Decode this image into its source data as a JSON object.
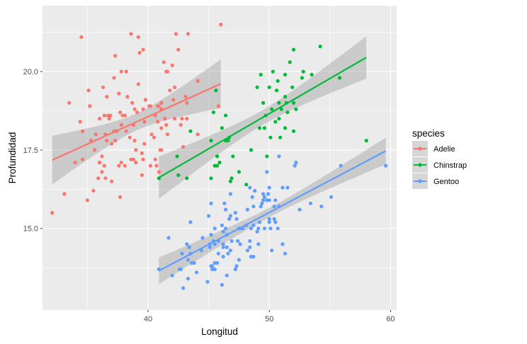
{
  "chart_data": {
    "type": "scatter",
    "xlabel": "Longitud",
    "ylabel": "Profundidad",
    "xlim": [
      31.3,
      60.5
    ],
    "ylim": [
      12.4,
      22.1
    ],
    "x_ticks": [
      40,
      50,
      60
    ],
    "y_ticks": [
      15.0,
      17.5,
      20.0
    ],
    "x_tick_labels": [
      "40",
      "50",
      "60"
    ],
    "y_tick_labels": [
      "15.0",
      "17.5",
      "20.0"
    ],
    "grid": true,
    "background": "#ebebeb",
    "legend": {
      "title": "species",
      "placement": "right"
    },
    "series": [
      {
        "name": "Adelie",
        "color": "#f8766d",
        "fit": {
          "x": [
            32.1,
            46.0
          ],
          "y": [
            17.18,
            19.61
          ],
          "ci_low": [
            16.3,
            19.0
          ],
          "ci_high": [
            18.1,
            20.3
          ]
        },
        "points": [
          [
            32.1,
            15.5
          ],
          [
            33.1,
            16.1
          ],
          [
            33.5,
            19.0
          ],
          [
            34.0,
            17.1
          ],
          [
            34.4,
            18.4
          ],
          [
            34.5,
            21.1
          ],
          [
            34.6,
            17.2
          ],
          [
            34.6,
            18.1
          ],
          [
            35.0,
            15.9
          ],
          [
            35.1,
            19.4
          ],
          [
            35.2,
            18.9
          ],
          [
            35.3,
            17.8
          ],
          [
            35.5,
            16.2
          ],
          [
            35.6,
            17.5
          ],
          [
            35.7,
            18.0
          ],
          [
            35.9,
            16.6
          ],
          [
            36.0,
            17.1
          ],
          [
            36.0,
            18.5
          ],
          [
            36.2,
            17.3
          ],
          [
            36.2,
            16.8
          ],
          [
            36.3,
            19.5
          ],
          [
            36.4,
            17.0
          ],
          [
            36.4,
            18.6
          ],
          [
            36.5,
            16.6
          ],
          [
            36.5,
            18.0
          ],
          [
            36.6,
            17.8
          ],
          [
            36.6,
            19.2
          ],
          [
            36.7,
            18.6
          ],
          [
            36.8,
            18.5
          ],
          [
            36.9,
            18.6
          ],
          [
            37.0,
            16.5
          ],
          [
            37.0,
            17.7
          ],
          [
            37.2,
            18.1
          ],
          [
            37.2,
            19.8
          ],
          [
            37.3,
            17.8
          ],
          [
            37.3,
            20.5
          ],
          [
            37.4,
            18.1
          ],
          [
            37.6,
            17.0
          ],
          [
            37.6,
            19.3
          ],
          [
            37.7,
            16.0
          ],
          [
            37.7,
            18.7
          ],
          [
            37.8,
            17.1
          ],
          [
            37.8,
            18.3
          ],
          [
            37.8,
            20.0
          ],
          [
            37.9,
            18.6
          ],
          [
            38.1,
            17.0
          ],
          [
            38.1,
            18.6
          ],
          [
            38.2,
            18.1
          ],
          [
            38.2,
            20.0
          ],
          [
            38.3,
            19.2
          ],
          [
            38.5,
            17.9
          ],
          [
            38.6,
            17.2
          ],
          [
            38.6,
            21.2
          ],
          [
            38.7,
            19.0
          ],
          [
            38.8,
            17.2
          ],
          [
            38.8,
            18.3
          ],
          [
            38.9,
            17.8
          ],
          [
            38.9,
            18.8
          ],
          [
            39.0,
            17.1
          ],
          [
            39.0,
            17.5
          ],
          [
            39.1,
            18.7
          ],
          [
            39.2,
            19.6
          ],
          [
            39.2,
            21.1
          ],
          [
            39.3,
            20.6
          ],
          [
            39.5,
            16.7
          ],
          [
            39.5,
            17.4
          ],
          [
            39.6,
            17.2
          ],
          [
            39.6,
            18.8
          ],
          [
            39.6,
            20.7
          ],
          [
            39.7,
            17.7
          ],
          [
            39.7,
            18.4
          ],
          [
            39.8,
            19.1
          ],
          [
            39.8,
            19.1
          ],
          [
            40.1,
            18.9
          ],
          [
            40.2,
            17.0
          ],
          [
            40.2,
            18.9
          ],
          [
            40.3,
            18.0
          ],
          [
            40.5,
            17.9
          ],
          [
            40.6,
            17.2
          ],
          [
            40.6,
            18.6
          ],
          [
            40.7,
            17.0
          ],
          [
            40.8,
            18.4
          ],
          [
            40.8,
            18.9
          ],
          [
            40.9,
            16.6
          ],
          [
            40.9,
            16.8
          ],
          [
            40.9,
            18.9
          ],
          [
            41.0,
            17.5
          ],
          [
            41.1,
            17.5
          ],
          [
            41.1,
            18.2
          ],
          [
            41.1,
            18.8
          ],
          [
            41.1,
            19.0
          ],
          [
            41.3,
            20.3
          ],
          [
            41.4,
            18.5
          ],
          [
            41.5,
            18.3
          ],
          [
            41.5,
            20.0
          ],
          [
            41.6,
            18.0
          ],
          [
            41.6,
            20.0
          ],
          [
            41.8,
            19.4
          ],
          [
            42.0,
            20.2
          ],
          [
            42.1,
            19.1
          ],
          [
            42.2,
            18.5
          ],
          [
            42.2,
            19.5
          ],
          [
            42.3,
            21.2
          ],
          [
            42.5,
            20.7
          ],
          [
            42.7,
            18.3
          ],
          [
            42.8,
            18.5
          ],
          [
            42.9,
            17.6
          ],
          [
            43.1,
            19.2
          ],
          [
            43.2,
            18.5
          ],
          [
            43.2,
            19.0
          ],
          [
            43.3,
            21.2
          ],
          [
            44.1,
            18.0
          ],
          [
            44.1,
            19.7
          ],
          [
            45.8,
            18.9
          ],
          [
            46.0,
            21.5
          ]
        ]
      },
      {
        "name": "Chinstrap",
        "color": "#00ba38",
        "fit": {
          "x": [
            40.9,
            58.0
          ],
          "y": [
            16.62,
            20.45
          ],
          "ci_low": [
            15.9,
            19.8
          ],
          "ci_high": [
            17.3,
            21.1
          ]
        },
        "points": [
          [
            40.9,
            16.6
          ],
          [
            42.4,
            17.3
          ],
          [
            42.5,
            16.7
          ],
          [
            43.2,
            16.6
          ],
          [
            43.5,
            18.1
          ],
          [
            45.2,
            17.8
          ],
          [
            45.2,
            16.6
          ],
          [
            45.4,
            18.7
          ],
          [
            45.5,
            17.0
          ],
          [
            45.6,
            19.4
          ],
          [
            45.7,
            17.0
          ],
          [
            45.7,
            17.3
          ],
          [
            45.9,
            17.1
          ],
          [
            46.1,
            18.2
          ],
          [
            46.4,
            17.8
          ],
          [
            46.4,
            18.6
          ],
          [
            46.6,
            17.8
          ],
          [
            46.7,
            17.9
          ],
          [
            46.8,
            16.5
          ],
          [
            46.9,
            16.6
          ],
          [
            47.0,
            17.3
          ],
          [
            47.5,
            16.8
          ],
          [
            48.1,
            16.4
          ],
          [
            48.5,
            17.5
          ],
          [
            49.0,
            19.5
          ],
          [
            49.2,
            18.2
          ],
          [
            49.3,
            19.9
          ],
          [
            49.5,
            19.0
          ],
          [
            49.6,
            18.2
          ],
          [
            49.7,
            18.6
          ],
          [
            49.8,
            17.3
          ],
          [
            50.0,
            19.5
          ],
          [
            50.1,
            17.9
          ],
          [
            50.2,
            18.8
          ],
          [
            50.3,
            20.0
          ],
          [
            50.5,
            18.4
          ],
          [
            50.6,
            19.4
          ],
          [
            50.7,
            19.7
          ],
          [
            50.8,
            18.5
          ],
          [
            50.8,
            19.0
          ],
          [
            50.9,
            17.9
          ],
          [
            51.0,
            18.8
          ],
          [
            51.3,
            18.2
          ],
          [
            51.3,
            19.2
          ],
          [
            51.3,
            19.9
          ],
          [
            51.4,
            19.0
          ],
          [
            51.5,
            18.7
          ],
          [
            51.7,
            20.3
          ],
          [
            51.9,
            19.5
          ],
          [
            52.0,
            18.1
          ],
          [
            52.0,
            19.0
          ],
          [
            52.0,
            20.7
          ],
          [
            52.2,
            18.8
          ],
          [
            52.7,
            19.8
          ],
          [
            52.8,
            20.0
          ],
          [
            53.5,
            19.9
          ],
          [
            54.2,
            20.8
          ],
          [
            55.8,
            19.8
          ],
          [
            58.0,
            17.8
          ]
        ]
      },
      {
        "name": "Gentoo",
        "color": "#619cff",
        "fit": {
          "x": [
            40.9,
            59.6
          ],
          "y": [
            13.65,
            17.47
          ],
          "ci_low": [
            13.3,
            17.0
          ],
          "ci_high": [
            14.0,
            18.0
          ]
        },
        "points": [
          [
            40.9,
            13.7
          ],
          [
            41.7,
            14.7
          ],
          [
            42.0,
            13.5
          ],
          [
            42.6,
            13.7
          ],
          [
            42.7,
            13.7
          ],
          [
            42.8,
            14.2
          ],
          [
            42.9,
            13.1
          ],
          [
            43.2,
            14.5
          ],
          [
            43.3,
            13.4
          ],
          [
            43.3,
            14.0
          ],
          [
            43.4,
            14.4
          ],
          [
            43.5,
            14.2
          ],
          [
            43.5,
            15.2
          ],
          [
            43.6,
            13.9
          ],
          [
            43.8,
            13.9
          ],
          [
            44.0,
            13.6
          ],
          [
            44.4,
            14.3
          ],
          [
            44.5,
            14.7
          ],
          [
            44.9,
            13.3
          ],
          [
            45.0,
            15.4
          ],
          [
            45.1,
            14.4
          ],
          [
            45.1,
            14.5
          ],
          [
            45.2,
            13.8
          ],
          [
            45.2,
            14.8
          ],
          [
            45.2,
            15.8
          ],
          [
            45.3,
            13.7
          ],
          [
            45.3,
            13.8
          ],
          [
            45.4,
            14.6
          ],
          [
            45.5,
            13.7
          ],
          [
            45.5,
            13.9
          ],
          [
            45.5,
            14.5
          ],
          [
            45.5,
            15.0
          ],
          [
            45.7,
            13.9
          ],
          [
            45.8,
            14.2
          ],
          [
            45.8,
            14.6
          ],
          [
            46.1,
            13.2
          ],
          [
            46.1,
            15.1
          ],
          [
            46.2,
            14.1
          ],
          [
            46.2,
            14.4
          ],
          [
            46.2,
            14.5
          ],
          [
            46.2,
            14.9
          ],
          [
            46.3,
            15.8
          ],
          [
            46.4,
            15.0
          ],
          [
            46.4,
            15.6
          ],
          [
            46.5,
            13.5
          ],
          [
            46.5,
            14.4
          ],
          [
            46.5,
            14.8
          ],
          [
            46.6,
            14.2
          ],
          [
            46.7,
            15.3
          ],
          [
            46.8,
            14.3
          ],
          [
            46.8,
            15.4
          ],
          [
            46.8,
            16.1
          ],
          [
            46.9,
            14.6
          ],
          [
            47.2,
            13.7
          ],
          [
            47.2,
            15.5
          ],
          [
            47.3,
            13.8
          ],
          [
            47.3,
            15.3
          ],
          [
            47.4,
            14.6
          ],
          [
            47.5,
            14.0
          ],
          [
            47.5,
            15.0
          ],
          [
            47.6,
            14.5
          ],
          [
            47.7,
            15.0
          ],
          [
            47.8,
            15.0
          ],
          [
            48.1,
            15.1
          ],
          [
            48.2,
            14.3
          ],
          [
            48.2,
            15.6
          ],
          [
            48.4,
            14.4
          ],
          [
            48.4,
            14.6
          ],
          [
            48.4,
            16.3
          ],
          [
            48.5,
            14.1
          ],
          [
            48.5,
            15.0
          ],
          [
            48.6,
            16.0
          ],
          [
            48.7,
            14.1
          ],
          [
            48.7,
            15.1
          ],
          [
            48.7,
            15.7
          ],
          [
            48.8,
            16.2
          ],
          [
            49.0,
            14.9
          ],
          [
            49.1,
            14.5
          ],
          [
            49.1,
            15.0
          ],
          [
            49.2,
            15.2
          ],
          [
            49.3,
            15.7
          ],
          [
            49.4,
            15.8
          ],
          [
            49.5,
            15.9
          ],
          [
            49.5,
            16.1
          ],
          [
            49.6,
            15.0
          ],
          [
            49.6,
            16.0
          ],
          [
            49.8,
            15.9
          ],
          [
            49.8,
            16.8
          ],
          [
            49.9,
            16.1
          ],
          [
            50.0,
            15.2
          ],
          [
            50.0,
            15.3
          ],
          [
            50.0,
            15.9
          ],
          [
            50.0,
            16.3
          ],
          [
            50.1,
            15.0
          ],
          [
            50.2,
            14.3
          ],
          [
            50.4,
            15.3
          ],
          [
            50.4,
            15.7
          ],
          [
            50.5,
            15.2
          ],
          [
            50.5,
            15.9
          ],
          [
            50.7,
            15.0
          ],
          [
            50.8,
            15.7
          ],
          [
            50.8,
            17.3
          ],
          [
            51.1,
            14.5
          ],
          [
            51.1,
            16.3
          ],
          [
            51.3,
            14.2
          ],
          [
            51.5,
            16.3
          ],
          [
            52.1,
            17.0
          ],
          [
            52.2,
            17.1
          ],
          [
            52.5,
            15.6
          ],
          [
            53.4,
            15.8
          ],
          [
            54.3,
            15.7
          ],
          [
            55.1,
            16.0
          ],
          [
            55.9,
            17.0
          ],
          [
            59.6,
            17.0
          ]
        ]
      }
    ]
  }
}
